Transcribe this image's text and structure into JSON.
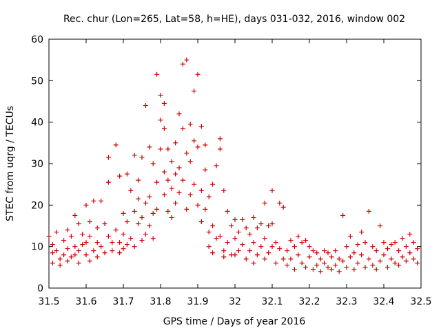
{
  "chart_data": {
    "type": "scatter",
    "title": "Rec. chur (Lon=265, Lat=58, h=HE), days 031-032, 2016, window 002",
    "xlabel": "GPS time / Days of year 2016",
    "ylabel": "STEC from uqrg / TECUs",
    "xlim": [
      31.5,
      32.5
    ],
    "ylim": [
      0,
      60
    ],
    "xticks": [
      31.5,
      31.6,
      31.7,
      31.8,
      31.9,
      32.0,
      32.1,
      32.2,
      32.3,
      32.4,
      32.5
    ],
    "xtick_labels": [
      "31.5",
      "31.6",
      "31.7",
      "31.8",
      "31.9",
      "32",
      "32.1",
      "32.2",
      "32.3",
      "32.4",
      "32.5"
    ],
    "yticks": [
      0,
      10,
      20,
      30,
      40,
      50,
      60
    ],
    "ytick_labels": [
      "0",
      "10",
      "20",
      "30",
      "40",
      "50",
      "60"
    ],
    "marker": "plus",
    "color": "#cc0000",
    "points": [
      [
        31.5,
        12.5
      ],
      [
        31.51,
        10.5
      ],
      [
        31.51,
        8.5
      ],
      [
        31.51,
        6
      ],
      [
        31.52,
        13.5
      ],
      [
        31.52,
        9
      ],
      [
        31.53,
        7
      ],
      [
        31.53,
        5.5
      ],
      [
        31.54,
        11.5
      ],
      [
        31.54,
        8
      ],
      [
        31.55,
        14
      ],
      [
        31.55,
        9.5
      ],
      [
        31.55,
        6.5
      ],
      [
        31.56,
        12.5
      ],
      [
        31.56,
        7.5
      ],
      [
        31.57,
        17.5
      ],
      [
        31.57,
        10
      ],
      [
        31.57,
        8
      ],
      [
        31.58,
        15.5
      ],
      [
        31.58,
        9
      ],
      [
        31.58,
        6
      ],
      [
        31.59,
        13
      ],
      [
        31.59,
        10.5
      ],
      [
        31.6,
        20
      ],
      [
        31.6,
        11
      ],
      [
        31.6,
        8
      ],
      [
        31.61,
        16
      ],
      [
        31.61,
        12.5
      ],
      [
        31.61,
        6.5
      ],
      [
        31.62,
        21
      ],
      [
        31.62,
        9
      ],
      [
        31.63,
        14.5
      ],
      [
        31.63,
        11
      ],
      [
        31.63,
        7.5
      ],
      [
        31.64,
        21
      ],
      [
        31.64,
        10
      ],
      [
        31.65,
        15.5
      ],
      [
        31.65,
        8.5
      ],
      [
        31.66,
        25.5
      ],
      [
        31.66,
        12.5
      ],
      [
        31.66,
        31.5
      ],
      [
        31.67,
        11
      ],
      [
        31.67,
        9
      ],
      [
        31.68,
        34.5
      ],
      [
        31.68,
        14
      ],
      [
        31.69,
        27
      ],
      [
        31.69,
        11
      ],
      [
        31.69,
        8.5
      ],
      [
        31.7,
        18
      ],
      [
        31.7,
        13
      ],
      [
        31.7,
        9.5
      ],
      [
        31.71,
        27.5
      ],
      [
        31.71,
        16
      ],
      [
        31.71,
        10.5
      ],
      [
        31.72,
        23.5
      ],
      [
        31.72,
        12
      ],
      [
        31.73,
        32
      ],
      [
        31.73,
        18.5
      ],
      [
        31.73,
        10
      ],
      [
        31.74,
        26
      ],
      [
        31.74,
        15.5
      ],
      [
        31.74,
        21.5
      ],
      [
        31.75,
        31.5
      ],
      [
        31.75,
        17
      ],
      [
        31.75,
        11.5
      ],
      [
        31.76,
        44
      ],
      [
        31.76,
        20.5
      ],
      [
        31.76,
        13
      ],
      [
        31.77,
        34
      ],
      [
        31.77,
        22
      ],
      [
        31.77,
        15
      ],
      [
        31.78,
        30
      ],
      [
        31.78,
        18
      ],
      [
        31.78,
        12
      ],
      [
        31.79,
        51.5
      ],
      [
        31.79,
        25.5
      ],
      [
        31.79,
        19
      ],
      [
        31.8,
        46.5
      ],
      [
        31.8,
        40.5
      ],
      [
        31.8,
        33.5
      ],
      [
        31.81,
        44.5
      ],
      [
        31.81,
        38.5
      ],
      [
        31.81,
        28
      ],
      [
        31.81,
        22.5
      ],
      [
        31.82,
        33.5
      ],
      [
        31.82,
        26
      ],
      [
        31.82,
        18.5
      ],
      [
        31.83,
        30.5
      ],
      [
        31.83,
        24
      ],
      [
        31.83,
        17
      ],
      [
        31.84,
        35
      ],
      [
        31.84,
        27.5
      ],
      [
        31.84,
        20.5
      ],
      [
        31.85,
        42
      ],
      [
        31.85,
        29
      ],
      [
        31.85,
        23
      ],
      [
        31.86,
        54
      ],
      [
        31.86,
        38.5
      ],
      [
        31.86,
        26
      ],
      [
        31.87,
        55
      ],
      [
        31.87,
        32.5
      ],
      [
        31.87,
        19
      ],
      [
        31.88,
        39.5
      ],
      [
        31.88,
        30.5
      ],
      [
        31.88,
        22.5
      ],
      [
        31.89,
        47.5
      ],
      [
        31.89,
        35.5
      ],
      [
        31.89,
        25
      ],
      [
        31.9,
        51.5
      ],
      [
        31.9,
        34
      ],
      [
        31.9,
        20
      ],
      [
        31.91,
        39
      ],
      [
        31.91,
        23.5
      ],
      [
        31.91,
        16
      ],
      [
        31.92,
        34.5
      ],
      [
        31.92,
        28.5
      ],
      [
        31.92,
        19
      ],
      [
        31.93,
        22
      ],
      [
        31.93,
        13.5
      ],
      [
        31.93,
        10
      ],
      [
        31.94,
        25
      ],
      [
        31.94,
        15
      ],
      [
        31.94,
        8.5
      ],
      [
        31.95,
        29.5
      ],
      [
        31.95,
        12
      ],
      [
        31.96,
        36
      ],
      [
        31.96,
        33.5
      ],
      [
        31.96,
        12.5
      ],
      [
        31.97,
        23.5
      ],
      [
        31.97,
        9
      ],
      [
        31.97,
        7.5
      ],
      [
        31.98,
        18.5
      ],
      [
        31.98,
        11
      ],
      [
        31.99,
        15
      ],
      [
        31.99,
        8
      ],
      [
        32.0,
        16.5
      ],
      [
        32.0,
        12
      ],
      [
        32.0,
        8
      ],
      [
        32.01,
        13.5
      ],
      [
        32.01,
        9
      ],
      [
        32.02,
        16.5
      ],
      [
        32.02,
        10.5
      ],
      [
        32.03,
        14.5
      ],
      [
        32.03,
        7
      ],
      [
        32.04,
        13
      ],
      [
        32.04,
        9
      ],
      [
        32.05,
        17
      ],
      [
        32.05,
        11
      ],
      [
        32.05,
        6
      ],
      [
        32.06,
        14.5
      ],
      [
        32.06,
        8
      ],
      [
        32.07,
        15.5
      ],
      [
        32.07,
        10
      ],
      [
        32.08,
        20.5
      ],
      [
        32.08,
        12
      ],
      [
        32.08,
        7
      ],
      [
        32.09,
        15
      ],
      [
        32.09,
        8.5
      ],
      [
        32.1,
        23.5
      ],
      [
        32.1,
        15.5
      ],
      [
        32.1,
        10
      ],
      [
        32.11,
        11
      ],
      [
        32.11,
        6
      ],
      [
        32.12,
        20.5
      ],
      [
        32.12,
        9.5
      ],
      [
        32.13,
        19.5
      ],
      [
        32.13,
        7
      ],
      [
        32.14,
        9
      ],
      [
        32.14,
        5.5
      ],
      [
        32.15,
        11.5
      ],
      [
        32.15,
        7
      ],
      [
        32.16,
        10
      ],
      [
        32.16,
        4.5
      ],
      [
        32.17,
        12.5
      ],
      [
        32.17,
        8
      ],
      [
        32.18,
        11
      ],
      [
        32.18,
        6
      ],
      [
        32.19,
        11.5
      ],
      [
        32.19,
        5
      ],
      [
        32.2,
        10
      ],
      [
        32.2,
        7.5
      ],
      [
        32.21,
        9
      ],
      [
        32.21,
        4.5
      ],
      [
        32.22,
        8.5
      ],
      [
        32.22,
        5.5
      ],
      [
        32.23,
        7
      ],
      [
        32.23,
        4
      ],
      [
        32.24,
        9
      ],
      [
        32.24,
        6
      ],
      [
        32.25,
        8.5
      ],
      [
        32.25,
        5
      ],
      [
        32.26,
        7.5
      ],
      [
        32.26,
        4.5
      ],
      [
        32.27,
        9
      ],
      [
        32.27,
        5.5
      ],
      [
        32.28,
        7
      ],
      [
        32.28,
        4
      ],
      [
        32.29,
        17.5
      ],
      [
        32.29,
        6.5
      ],
      [
        32.3,
        10
      ],
      [
        32.3,
        5
      ],
      [
        32.31,
        12.5
      ],
      [
        32.31,
        7.5
      ],
      [
        32.32,
        8.5
      ],
      [
        32.32,
        4.5
      ],
      [
        32.33,
        10.5
      ],
      [
        32.33,
        6
      ],
      [
        32.34,
        13.5
      ],
      [
        32.34,
        8
      ],
      [
        32.35,
        11
      ],
      [
        32.35,
        5
      ],
      [
        32.36,
        18.5
      ],
      [
        32.36,
        7
      ],
      [
        32.37,
        10
      ],
      [
        32.37,
        5.5
      ],
      [
        32.38,
        9
      ],
      [
        32.38,
        4.5
      ],
      [
        32.39,
        15
      ],
      [
        32.39,
        6.5
      ],
      [
        32.4,
        11
      ],
      [
        32.4,
        8
      ],
      [
        32.41,
        9.5
      ],
      [
        32.41,
        5
      ],
      [
        32.42,
        10.5
      ],
      [
        32.42,
        7
      ],
      [
        32.43,
        11
      ],
      [
        32.43,
        6
      ],
      [
        32.44,
        9
      ],
      [
        32.44,
        5.5
      ],
      [
        32.45,
        12
      ],
      [
        32.45,
        7.5
      ],
      [
        32.46,
        10
      ],
      [
        32.46,
        6.5
      ],
      [
        32.47,
        13
      ],
      [
        32.47,
        8.5
      ],
      [
        32.48,
        11
      ],
      [
        32.48,
        7
      ],
      [
        32.49,
        9.5
      ],
      [
        32.49,
        6
      ]
    ]
  }
}
